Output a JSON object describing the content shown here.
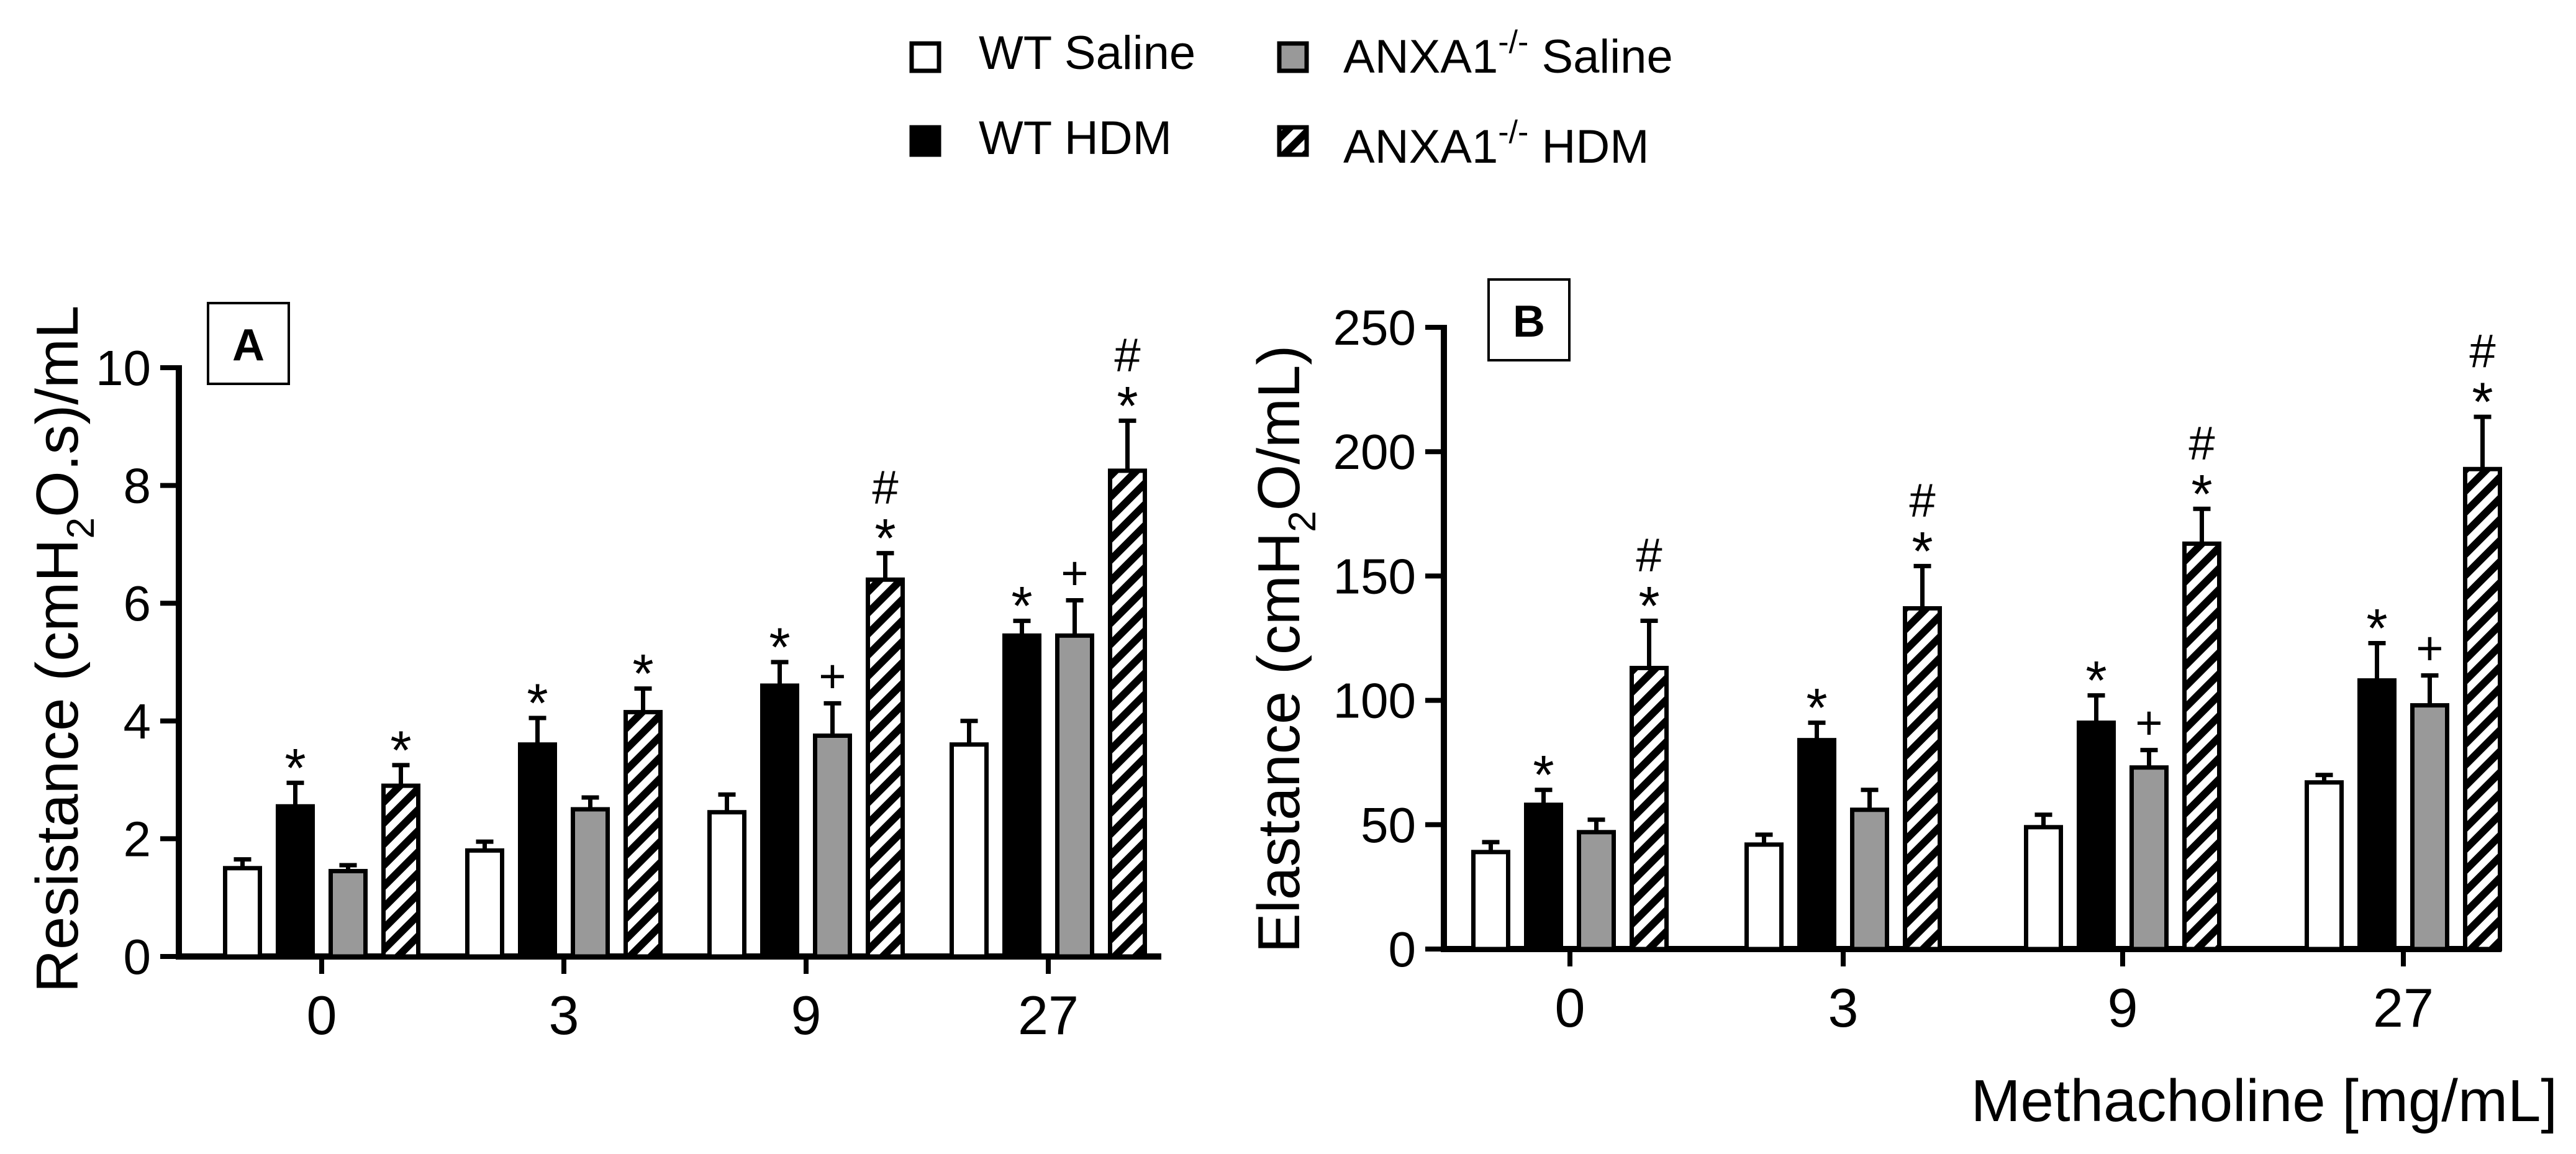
{
  "legend": {
    "items": [
      {
        "key": "wt_saline",
        "label": "WT Saline",
        "sup": "",
        "label_after": ""
      },
      {
        "key": "anxa_saline",
        "label": "ANXA1",
        "sup": "-/-",
        "label_after": " Saline"
      },
      {
        "key": "wt_hdm",
        "label": "WT HDM",
        "sup": "",
        "label_after": ""
      },
      {
        "key": "anxa_hdm",
        "label": "ANXA1",
        "sup": "-/-",
        "label_after": " HDM"
      }
    ]
  },
  "x_axis_title": "Methacholine [mg/mL]",
  "colors": {
    "wt_saline": "#ffffff",
    "wt_hdm": "#000000",
    "anxa_saline": "#999999",
    "anxa_hdm": "hatch"
  },
  "chart_data": [
    {
      "panel": "A",
      "type": "bar",
      "ylabel_parts": [
        "Resistance (cmH",
        "2",
        "O.s)/mL"
      ],
      "categories": [
        "0",
        "3",
        "9",
        "27"
      ],
      "ylim": [
        0,
        10
      ],
      "yticks": [
        0,
        2,
        4,
        6,
        8,
        10
      ],
      "series": [
        {
          "name": "WT Saline",
          "key": "wt_saline",
          "values": [
            1.5,
            1.8,
            2.45,
            3.6
          ],
          "errors": [
            0.15,
            0.15,
            0.3,
            0.4
          ],
          "annotations": [
            "",
            "",
            "",
            ""
          ]
        },
        {
          "name": "WT HDM",
          "key": "wt_hdm",
          "values": [
            2.55,
            3.6,
            4.6,
            5.45
          ],
          "errors": [
            0.4,
            0.45,
            0.4,
            0.25
          ],
          "annotations": [
            "*",
            "*",
            "*",
            "*"
          ]
        },
        {
          "name": "ANXA1-/- Saline",
          "key": "anxa_saline",
          "values": [
            1.45,
            2.5,
            3.75,
            5.45
          ],
          "errors": [
            0.1,
            0.2,
            0.55,
            0.6
          ],
          "annotations": [
            "",
            "",
            "+",
            "+"
          ]
        },
        {
          "name": "ANXA1-/- HDM",
          "key": "anxa_hdm",
          "values": [
            2.9,
            4.15,
            6.4,
            8.25
          ],
          "errors": [
            0.35,
            0.4,
            0.45,
            0.85
          ],
          "annotations": [
            "*",
            "*",
            "#\n*",
            "#\n*"
          ]
        }
      ]
    },
    {
      "panel": "B",
      "type": "bar",
      "ylabel_parts": [
        "Elastance (cmH",
        "2",
        "O/mL)"
      ],
      "categories": [
        "0",
        "3",
        "9",
        "27"
      ],
      "ylim": [
        0,
        250
      ],
      "yticks": [
        0,
        50,
        100,
        150,
        200,
        250
      ],
      "series": [
        {
          "name": "WT Saline",
          "key": "wt_saline",
          "values": [
            39,
            42,
            49,
            67
          ],
          "errors": [
            4,
            4,
            5,
            3
          ],
          "annotations": [
            "",
            "",
            "",
            ""
          ]
        },
        {
          "name": "WT HDM",
          "key": "wt_hdm",
          "values": [
            58,
            84,
            91,
            108
          ],
          "errors": [
            6,
            7,
            11,
            15
          ],
          "annotations": [
            "*",
            "*",
            "*",
            "*"
          ]
        },
        {
          "name": "ANXA1-/- Saline",
          "key": "anxa_saline",
          "values": [
            47,
            56,
            73,
            98
          ],
          "errors": [
            5,
            8,
            7,
            12
          ],
          "annotations": [
            "",
            "",
            "+",
            "+"
          ]
        },
        {
          "name": "ANXA1-/- HDM",
          "key": "anxa_hdm",
          "values": [
            113,
            137,
            163,
            193
          ],
          "errors": [
            19,
            17,
            14,
            21
          ],
          "annotations": [
            "#\n*",
            "#\n*",
            "#\n*",
            "#\n*"
          ]
        }
      ]
    }
  ]
}
